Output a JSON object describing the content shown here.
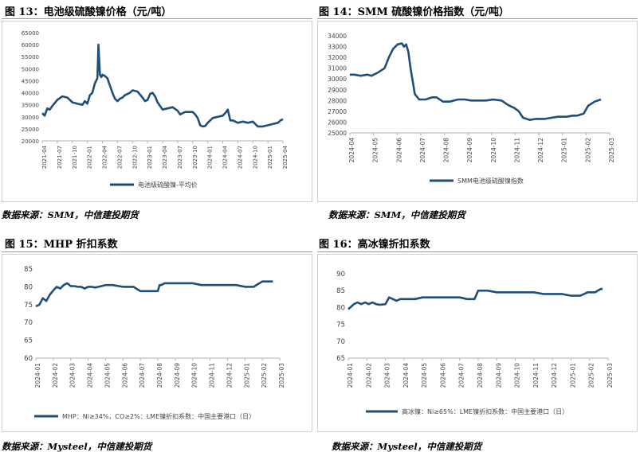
{
  "colors": {
    "series": "#1f4e79",
    "axis": "#b0b0b0",
    "text": "#444444"
  },
  "figures": [
    {
      "title": "图 13：电池级硫酸镍价格（元/吨）",
      "source": "数据来源：SMM，中信建投期货"
    },
    {
      "title": "图 14：SMM 硫酸镍价格指数（元/吨）",
      "source": "数据来源：SMM，中信建投期货"
    },
    {
      "title": "图 15：MHP 折扣系数",
      "source": "数据来源：Mysteel，中信建投期货"
    },
    {
      "title": "图 16：高冰镍折扣系数",
      "source": "数据来源：Mysteel，中信建投期货"
    }
  ],
  "chart_data": [
    {
      "type": "line",
      "title": "",
      "ylim": [
        20000,
        65000
      ],
      "yticks": [
        "65000",
        "60000",
        "55000",
        "50000",
        "45000",
        "40000",
        "35000",
        "30000",
        "25000",
        "20000"
      ],
      "xlim": [
        0,
        48
      ],
      "xticks": [
        "2021-04",
        "2021-07",
        "2021-10",
        "2022-01",
        "2022-04",
        "2022-07",
        "2022-10",
        "2023-01",
        "2023-04",
        "2023-07",
        "2023-10",
        "2024-01",
        "2024-04",
        "2024-07",
        "2024-10",
        "2025-01",
        "2025-04"
      ],
      "series": [
        {
          "name": "电池级硫酸镍-平均价",
          "x": [
            0,
            0.5,
            1,
            1.5,
            2,
            3,
            4,
            5,
            6,
            7,
            8,
            8.5,
            9,
            9.5,
            10,
            10.5,
            11,
            11.2,
            11.5,
            11.8,
            12,
            12.5,
            13,
            13.5,
            14,
            14.5,
            15,
            15.5,
            16,
            16.5,
            17,
            17.5,
            18,
            19,
            20,
            20.5,
            21,
            21.5,
            22,
            22.5,
            23,
            23.5,
            24,
            25,
            26,
            27,
            27.5,
            28,
            28.5,
            29,
            30,
            30.5,
            31,
            31.5,
            32,
            32.5,
            33,
            34,
            35,
            36,
            36.5,
            37,
            37.5,
            38,
            38.5,
            39,
            40,
            41,
            42,
            43,
            44,
            45,
            46,
            47,
            47.5,
            48
          ],
          "values": [
            31500,
            30500,
            33500,
            33000,
            34500,
            37000,
            38500,
            38000,
            36000,
            35500,
            35000,
            36500,
            35500,
            39000,
            40000,
            44000,
            46000,
            60000,
            47500,
            46500,
            47500,
            47000,
            46000,
            43000,
            40000,
            37500,
            36500,
            37500,
            38000,
            39000,
            39500,
            40000,
            41000,
            40500,
            38000,
            36500,
            37000,
            39500,
            40000,
            38500,
            36000,
            34500,
            33000,
            33500,
            34000,
            32500,
            31000,
            31500,
            32000,
            32000,
            32000,
            31000,
            29500,
            26500,
            26000,
            26200,
            27500,
            29500,
            30000,
            30500,
            31500,
            33000,
            28500,
            28500,
            28000,
            27500,
            28000,
            27500,
            28000,
            26000,
            26000,
            26500,
            27000,
            27500,
            28500,
            29000
          ]
        }
      ]
    },
    {
      "type": "line",
      "title": "",
      "ylim": [
        25000,
        34000
      ],
      "yticks": [
        "34000",
        "33000",
        "32000",
        "31000",
        "30000",
        "29000",
        "28000",
        "27000",
        "26000",
        "25000"
      ],
      "xlim": [
        0,
        12
      ],
      "xticks": [
        "2024-04",
        "2024-05",
        "2024-06",
        "2024-07",
        "2024-08",
        "2024-09",
        "2024-10",
        "2024-11",
        "2024-12",
        "2025-01",
        "2025-02",
        "2025-03"
      ],
      "series": [
        {
          "name": "SMM电池级硫酸镍指数",
          "x": [
            0,
            0.2,
            0.5,
            0.8,
            1.0,
            1.3,
            1.6,
            1.8,
            2.0,
            2.2,
            2.4,
            2.5,
            2.6,
            2.7,
            2.8,
            3.0,
            3.2,
            3.5,
            3.8,
            4.0,
            4.3,
            4.6,
            5.0,
            5.3,
            5.6,
            6.0,
            6.3,
            6.6,
            7.0,
            7.3,
            7.6,
            7.8,
            8.0,
            8.3,
            8.6,
            9.0,
            9.3,
            9.6,
            10.0,
            10.3,
            10.5,
            10.8,
            11.0,
            11.3,
            11.6
          ],
          "values": [
            30400,
            30400,
            30300,
            30400,
            30300,
            30600,
            31000,
            32000,
            32800,
            33200,
            33300,
            33000,
            33200,
            32500,
            31000,
            28600,
            28100,
            28100,
            28300,
            28300,
            27900,
            27900,
            28100,
            28100,
            28000,
            28000,
            28000,
            28100,
            28000,
            27600,
            27300,
            27000,
            26400,
            26200,
            26300,
            26300,
            26400,
            26500,
            26500,
            26600,
            26600,
            26800,
            27500,
            27900,
            28100
          ]
        }
      ]
    },
    {
      "type": "line",
      "title": "",
      "ylim": [
        60,
        85
      ],
      "yticks": [
        "85",
        "80",
        "75",
        "70",
        "65",
        "60"
      ],
      "xlim": [
        0,
        14
      ],
      "xticks": [
        "2024-01",
        "2024-02",
        "2024-03",
        "2024-04",
        "2024-05",
        "2024-06",
        "2024-07",
        "2024-08",
        "2024-09",
        "2024-10",
        "2024-11",
        "2024-12",
        "2025-01",
        "2025-02",
        "2025-03"
      ],
      "series": [
        {
          "name": "MHP：Ni≥34%，CO≥2%：LME镍折扣系数：中国主要港口（日）",
          "x": [
            0,
            0.2,
            0.4,
            0.6,
            0.8,
            1.0,
            1.2,
            1.4,
            1.6,
            1.8,
            2.0,
            2.2,
            2.4,
            2.6,
            2.8,
            3.0,
            3.2,
            3.4,
            3.6,
            4.0,
            4.4,
            5.0,
            5.6,
            6.0,
            6.4,
            7.0,
            7.1,
            7.2,
            7.4,
            7.8,
            8.0,
            8.5,
            9.0,
            9.5,
            10.0,
            10.5,
            11.0,
            11.5,
            12.0,
            12.3,
            12.5,
            13.0,
            13.5,
            13.6
          ],
          "values": [
            74.5,
            75.0,
            76.8,
            76.0,
            77.8,
            79.0,
            80.0,
            79.5,
            80.5,
            81.0,
            80.2,
            80.2,
            80.0,
            80.0,
            79.5,
            80.0,
            80.0,
            79.8,
            80.0,
            80.5,
            80.5,
            80.0,
            80.0,
            78.8,
            78.8,
            78.8,
            80.5,
            80.5,
            81.0,
            81.0,
            81.0,
            81.0,
            81.0,
            80.5,
            80.5,
            80.5,
            80.5,
            80.5,
            80.0,
            80.0,
            80.0,
            81.5,
            81.5,
            81.5
          ]
        }
      ]
    },
    {
      "type": "line",
      "title": "",
      "ylim": [
        65,
        90
      ],
      "yticks": [
        "90",
        "85",
        "80",
        "75",
        "70",
        "65"
      ],
      "xlim": [
        0,
        14
      ],
      "xticks": [
        "2024-01",
        "2024-02",
        "2024-03",
        "2024-04",
        "2024-05",
        "2024-06",
        "2024-07",
        "2024-08",
        "2024-09",
        "2024-10",
        "2024-11",
        "2024-12",
        "2025-01",
        "2025-02",
        "2025-03"
      ],
      "series": [
        {
          "name": "高冰镍：Ni≥65%：LME镍折扣系数：中国主要港口（日）",
          "x": [
            0,
            0.1,
            0.3,
            0.5,
            0.7,
            0.9,
            1.1,
            1.3,
            1.5,
            1.7,
            2.0,
            2.2,
            2.4,
            2.6,
            2.8,
            3.0,
            3.3,
            3.6,
            4.0,
            4.5,
            5.0,
            5.5,
            6.0,
            6.4,
            6.8,
            7.0,
            7.5,
            8.0,
            8.5,
            9.0,
            9.5,
            10.0,
            10.5,
            11.0,
            11.5,
            12.0,
            12.3,
            12.5,
            12.9,
            13.0,
            13.3,
            13.6,
            13.7
          ],
          "values": [
            79.5,
            80.0,
            81.0,
            81.5,
            81.0,
            81.5,
            81.0,
            81.5,
            81.0,
            80.8,
            81.0,
            83.0,
            82.5,
            82.0,
            82.5,
            82.5,
            82.5,
            82.5,
            83.0,
            83.0,
            83.0,
            83.0,
            83.0,
            82.5,
            82.5,
            85.0,
            85.0,
            84.5,
            84.5,
            84.5,
            84.5,
            84.5,
            84.0,
            84.0,
            84.0,
            83.5,
            83.5,
            83.5,
            84.5,
            84.5,
            84.5,
            85.5,
            85.5
          ]
        }
      ]
    }
  ]
}
